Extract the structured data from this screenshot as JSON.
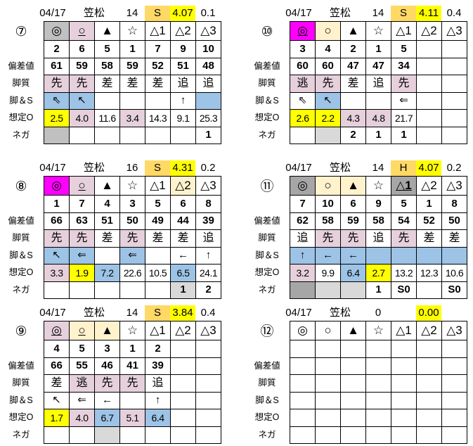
{
  "palette": {
    "g": "#c0c0c0",
    "dg": "#a6a6a6",
    "lg": "#d9d9d9",
    "p": "#e6d0dc",
    "m": "#ff00ff",
    "c": "#fff2cc",
    "b": "#9dc3e6",
    "y": "#ffff00",
    "o": "#ffd966"
  },
  "row_labels": [
    "偏差値",
    "脚質",
    "脚＆S",
    "想定O",
    "ネガ"
  ],
  "panels": [
    {
      "race": "⑦",
      "date": "04/17",
      "venue": "笠松",
      "count": "14",
      "grade": "S",
      "score": "4.07",
      "diff": "0.1",
      "marks": [
        "◎",
        "○",
        "▲",
        "☆",
        "△1",
        "△2",
        "△3"
      ],
      "marks_bg": [
        "g",
        "p",
        "",
        "",
        "",
        "",
        ""
      ],
      "marks_style": [
        "",
        "u",
        "",
        "",
        "",
        "",
        ""
      ],
      "nums": [
        "2",
        "6",
        "5",
        "1",
        "7",
        "9",
        "10"
      ],
      "hensa": [
        "61",
        "59",
        "58",
        "59",
        "52",
        "51",
        "48"
      ],
      "kyaku": [
        "先",
        "先",
        "差",
        "差",
        "差",
        "追",
        "追"
      ],
      "kyaku_bg": [
        "p",
        "p",
        "",
        "",
        "",
        "",
        ""
      ],
      "arrows": [
        "⇖",
        "↖",
        "",
        "",
        "",
        "↑",
        ""
      ],
      "arrows_bg": [
        "b",
        "b",
        "",
        "",
        "",
        "",
        "b"
      ],
      "odds": [
        "2.5",
        "4.0",
        "11.6",
        "3.4",
        "14.3",
        "9.1",
        "25.3"
      ],
      "odds_bg": [
        "y",
        "p",
        "",
        "p",
        "",
        "",
        ""
      ],
      "nega": [
        "",
        "",
        "",
        "",
        "",
        "",
        "1"
      ],
      "nega_bg": [
        "g",
        "",
        "",
        "",
        "",
        "",
        ""
      ]
    },
    {
      "race": "⑩",
      "date": "04/17",
      "venue": "笠松",
      "count": "14",
      "grade": "S",
      "score": "4.11",
      "diff": "0.4",
      "marks": [
        "◎",
        "○",
        "▲",
        "☆",
        "△1",
        "△2",
        "△3"
      ],
      "marks_bg": [
        "m",
        "c",
        "",
        "",
        "",
        "",
        ""
      ],
      "marks_style": [
        "u",
        "",
        "",
        "",
        "",
        "",
        ""
      ],
      "nums": [
        "3",
        "4",
        "2",
        "1",
        "5",
        "",
        ""
      ],
      "hensa": [
        "60",
        "60",
        "47",
        "47",
        "34",
        "",
        ""
      ],
      "kyaku": [
        "逃",
        "先",
        "差",
        "追",
        "先",
        "",
        ""
      ],
      "kyaku_bg": [
        "p",
        "p",
        "",
        "",
        "p",
        "",
        ""
      ],
      "arrows": [
        "⇖",
        "↖",
        "",
        "",
        "⇐",
        "",
        ""
      ],
      "arrows_bg": [
        "",
        "b",
        "",
        "",
        "",
        "",
        ""
      ],
      "odds": [
        "2.6",
        "2.2",
        "4.3",
        "4.8",
        "21.7",
        "",
        ""
      ],
      "odds_bg": [
        "y",
        "y",
        "p",
        "p",
        "",
        "",
        ""
      ],
      "nega": [
        "",
        "",
        "2",
        "1",
        "1",
        "",
        ""
      ],
      "nega_bg": [
        "",
        "lg",
        "",
        "",
        "",
        "",
        ""
      ]
    },
    {
      "race": "⑧",
      "date": "04/17",
      "venue": "笠松",
      "count": "16",
      "grade": "S",
      "score": "4.31",
      "diff": "0.2",
      "marks": [
        "◎",
        "○",
        "▲",
        "☆",
        "△1",
        "△2",
        "△3"
      ],
      "marks_bg": [
        "m",
        "p",
        "",
        "",
        "",
        "c",
        ""
      ],
      "marks_style": [
        "",
        "u",
        "",
        "",
        "",
        "",
        ""
      ],
      "nums": [
        "1",
        "7",
        "4",
        "3",
        "5",
        "6",
        "8"
      ],
      "hensa": [
        "66",
        "63",
        "51",
        "50",
        "49",
        "44",
        "39"
      ],
      "kyaku": [
        "先",
        "先",
        "差",
        "先",
        "差",
        "差",
        "追"
      ],
      "kyaku_bg": [
        "p",
        "p",
        "",
        "p",
        "",
        "",
        ""
      ],
      "arrows": [
        "↖",
        "⇐",
        "",
        "⇐",
        "",
        "←",
        "↑"
      ],
      "arrows_bg": [
        "b",
        "b",
        "",
        "b",
        "",
        "",
        ""
      ],
      "odds": [
        "3.3",
        "1.9",
        "7.2",
        "22.6",
        "10.5",
        "6.5",
        "24.1"
      ],
      "odds_bg": [
        "p",
        "y",
        "b",
        "",
        "",
        "b",
        ""
      ],
      "nega": [
        "",
        "",
        "",
        "",
        "",
        "1",
        "2"
      ],
      "nega_bg": [
        "",
        "",
        "",
        "",
        "",
        "lg",
        ""
      ]
    },
    {
      "race": "⑪",
      "date": "04/17",
      "venue": "笠松",
      "count": "14",
      "grade": "H",
      "score": "4.07",
      "diff": "0.2",
      "marks": [
        "◎",
        "○",
        "▲",
        "☆",
        "△1",
        "△2",
        "△3"
      ],
      "marks_bg": [
        "dg",
        "c",
        "c",
        "",
        "dg",
        "",
        ""
      ],
      "marks_style": [
        "",
        "",
        "",
        "",
        "ub",
        "",
        ""
      ],
      "nums": [
        "7",
        "10",
        "6",
        "9",
        "5",
        "1",
        "8"
      ],
      "hensa": [
        "62",
        "58",
        "59",
        "58",
        "54",
        "52",
        "50"
      ],
      "kyaku": [
        "追",
        "先",
        "先",
        "追",
        "先",
        "差",
        "差"
      ],
      "kyaku_bg": [
        "",
        "p",
        "p",
        "",
        "p",
        "",
        ""
      ],
      "arrows": [
        "↑",
        "←",
        "←",
        "",
        "",
        "",
        ""
      ],
      "arrows_bg": [
        "b",
        "b",
        "b",
        "b",
        "b",
        "b",
        "b"
      ],
      "odds": [
        "3.2",
        "9.9",
        "6.4",
        "2.7",
        "13.2",
        "12.3",
        "10.6"
      ],
      "odds_bg": [
        "p",
        "",
        "b",
        "y",
        "",
        "",
        ""
      ],
      "nega": [
        "",
        "",
        "",
        "1",
        "S0",
        "",
        "S0"
      ],
      "nega_bg": [
        "dg",
        "lg",
        "lg",
        "",
        "",
        "",
        ""
      ]
    },
    {
      "race": "⑨",
      "date": "04/17",
      "venue": "笠松",
      "count": "14",
      "grade": "S",
      "score": "3.84",
      "diff": "0.4",
      "marks": [
        "◎",
        "○",
        "▲",
        "☆",
        "△1",
        "△2",
        "△3"
      ],
      "marks_bg": [
        "p",
        "c",
        "c",
        "",
        "",
        "",
        ""
      ],
      "marks_style": [
        "u",
        "u",
        "",
        "",
        "",
        "",
        ""
      ],
      "nums": [
        "4",
        "5",
        "3",
        "1",
        "2",
        "",
        ""
      ],
      "hensa": [
        "66",
        "55",
        "46",
        "41",
        "39",
        "",
        ""
      ],
      "kyaku": [
        "差",
        "逃",
        "先",
        "先",
        "追",
        "",
        ""
      ],
      "kyaku_bg": [
        "",
        "p",
        "p",
        "p",
        "",
        "",
        ""
      ],
      "arrows": [
        "↖",
        "⇐",
        "←",
        "",
        "↑",
        "",
        ""
      ],
      "arrows_bg": [
        "",
        "",
        "",
        "",
        "",
        "",
        ""
      ],
      "odds": [
        "1.7",
        "4.0",
        "6.7",
        "5.1",
        "6.4",
        "",
        ""
      ],
      "odds_bg": [
        "y",
        "p",
        "b",
        "p",
        "b",
        "",
        ""
      ],
      "nega": [
        "",
        "",
        "",
        "",
        "",
        "",
        ""
      ],
      "nega_bg": [
        "",
        "",
        "lg",
        "",
        "",
        "",
        ""
      ]
    },
    {
      "race": "⑫",
      "date": "04/17",
      "venue": "笠松",
      "count": "0",
      "grade": "",
      "score": "0.00",
      "diff": "",
      "marks": [
        "◎",
        "○",
        "▲",
        "☆",
        "△1",
        "△2",
        "△3"
      ],
      "marks_bg": [
        "",
        "",
        "",
        "",
        "",
        "",
        ""
      ],
      "marks_style": [
        "",
        "",
        "",
        "",
        "",
        "",
        ""
      ],
      "nums": [
        "",
        "",
        "",
        "",
        "",
        "",
        ""
      ],
      "hensa": [
        "",
        "",
        "",
        "",
        "",
        "",
        ""
      ],
      "kyaku": [
        "",
        "",
        "",
        "",
        "",
        "",
        ""
      ],
      "kyaku_bg": [
        "",
        "",
        "",
        "",
        "",
        "",
        ""
      ],
      "arrows": [
        "",
        "",
        "",
        "",
        "",
        "",
        ""
      ],
      "arrows_bg": [
        "",
        "",
        "",
        "",
        "",
        "",
        ""
      ],
      "odds": [
        "",
        "",
        "",
        "",
        "",
        "",
        ""
      ],
      "odds_bg": [
        "",
        "",
        "",
        "",
        "",
        "",
        ""
      ],
      "nega": [
        "",
        "",
        "",
        "",
        "",
        "",
        ""
      ],
      "nega_bg": [
        "",
        "",
        "",
        "",
        "",
        "",
        ""
      ]
    }
  ]
}
